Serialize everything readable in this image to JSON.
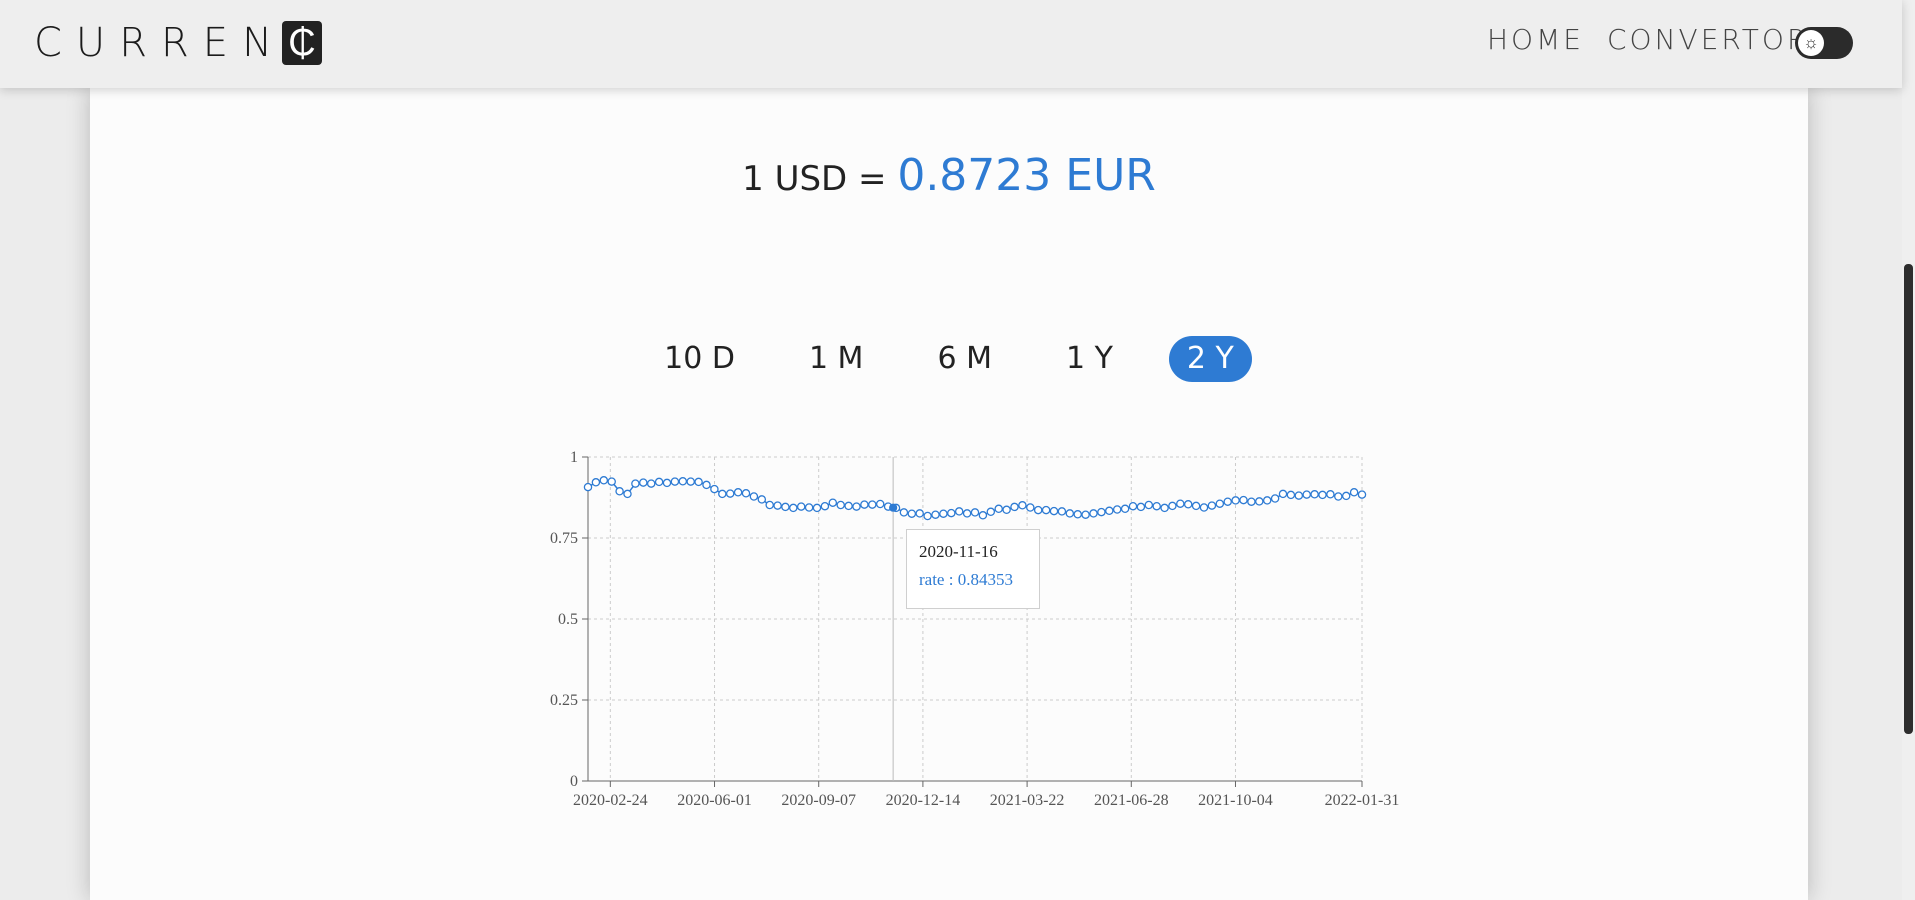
{
  "brand": {
    "text": "CURREN",
    "badge": "₵"
  },
  "nav": {
    "home": "HOME",
    "convertor": "CONVERTOR",
    "theme_toggle_icon": "sun-icon"
  },
  "rate": {
    "base": "1 USD =",
    "value": "0.8723 EUR"
  },
  "periods": [
    {
      "label": "10 D",
      "active": false
    },
    {
      "label": "1 M",
      "active": false
    },
    {
      "label": "6 M",
      "active": false
    },
    {
      "label": "1 Y",
      "active": false
    },
    {
      "label": "2 Y",
      "active": true
    }
  ],
  "tooltip": {
    "date": "2020-11-16",
    "rate_label": "rate : 0.84353"
  },
  "colors": {
    "accent": "#2e7bd3",
    "navbar": "#eeeeee",
    "card": "#fcfcfc"
  },
  "chart_data": {
    "type": "line",
    "title": "",
    "xlabel": "",
    "ylabel": "",
    "ylim": [
      0,
      1
    ],
    "yticks": [
      "0",
      "0.25",
      "0.5",
      "0.75",
      "1"
    ],
    "xticks": [
      "2020-02-24",
      "2020-06-01",
      "2020-09-07",
      "2020-12-14",
      "2021-03-22",
      "2021-06-28",
      "2021-10-04",
      "2022-01-31"
    ],
    "x_start": "2020-02-03",
    "x_end": "2022-01-31",
    "grid": true,
    "series": [
      {
        "values": [
          0.907,
          0.922,
          0.928,
          0.924,
          0.894,
          0.886,
          0.918,
          0.921,
          0.918,
          0.923,
          0.92,
          0.924,
          0.925,
          0.924,
          0.923,
          0.914,
          0.901,
          0.886,
          0.887,
          0.891,
          0.888,
          0.878,
          0.869,
          0.852,
          0.85,
          0.846,
          0.843,
          0.847,
          0.844,
          0.843,
          0.848,
          0.859,
          0.852,
          0.849,
          0.847,
          0.853,
          0.853,
          0.855,
          0.847,
          0.843,
          0.829,
          0.825,
          0.826,
          0.818,
          0.822,
          0.825,
          0.827,
          0.832,
          0.826,
          0.829,
          0.82,
          0.831,
          0.84,
          0.837,
          0.846,
          0.851,
          0.844,
          0.836,
          0.836,
          0.833,
          0.832,
          0.826,
          0.823,
          0.822,
          0.826,
          0.83,
          0.834,
          0.838,
          0.84,
          0.848,
          0.846,
          0.852,
          0.848,
          0.843,
          0.849,
          0.856,
          0.854,
          0.849,
          0.844,
          0.85,
          0.856,
          0.862,
          0.866,
          0.867,
          0.862,
          0.863,
          0.866,
          0.872,
          0.886,
          0.883,
          0.881,
          0.884,
          0.885,
          0.883,
          0.885,
          0.878,
          0.88,
          0.891,
          0.884
        ]
      }
    ],
    "hover": {
      "date": "2020-11-16",
      "value": 0.84353
    }
  }
}
